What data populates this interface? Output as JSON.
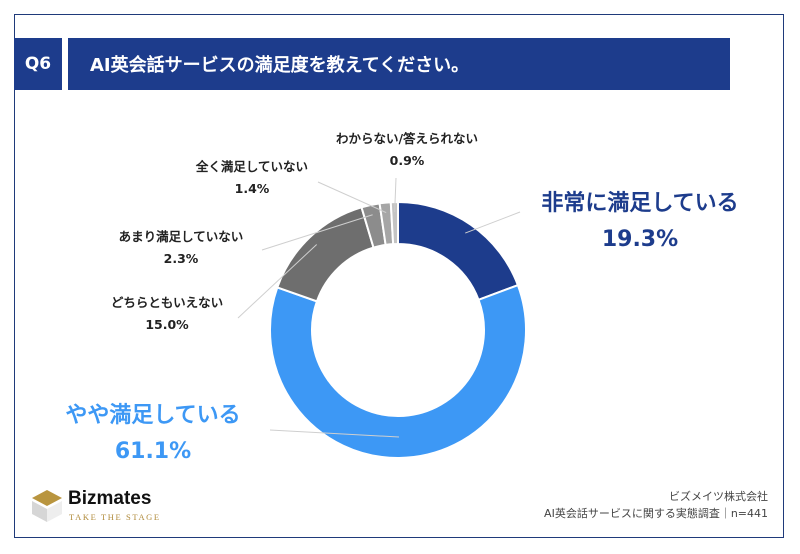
{
  "header": {
    "badge": "Q6",
    "title": "AI英会話サービスの満足度を教えてください。"
  },
  "colors": {
    "accent": "#1d3c8c",
    "very_satisfied": "#1d3c8c",
    "somewhat_satisfied": "#3d98f5",
    "neutral": "#6e6e6e",
    "not_very": "#8c8c8c",
    "not_at_all": "#a6a6a6",
    "unknown": "#c4c4c4"
  },
  "chart_data": {
    "type": "pie",
    "donut": true,
    "labels": [
      "非常に満足している",
      "やや満足している",
      "どちらともいえない",
      "あまり満足していない",
      "全く満足していない",
      "わからない/答えられない"
    ],
    "values": [
      19.3,
      61.1,
      15.0,
      2.3,
      1.4,
      0.9
    ],
    "value_labels": [
      "19.3%",
      "61.1%",
      "15.0%",
      "2.3%",
      "1.4%",
      "0.9%"
    ],
    "title": "AI英会話サービスの満足度を教えてください。"
  },
  "footer": {
    "logo_name": "Bizmates",
    "logo_tagline": "TAKE THE STAGE",
    "company": "ビズメイツ株式会社",
    "survey": "AI英会話サービスに関する実態調査｜n=441"
  }
}
